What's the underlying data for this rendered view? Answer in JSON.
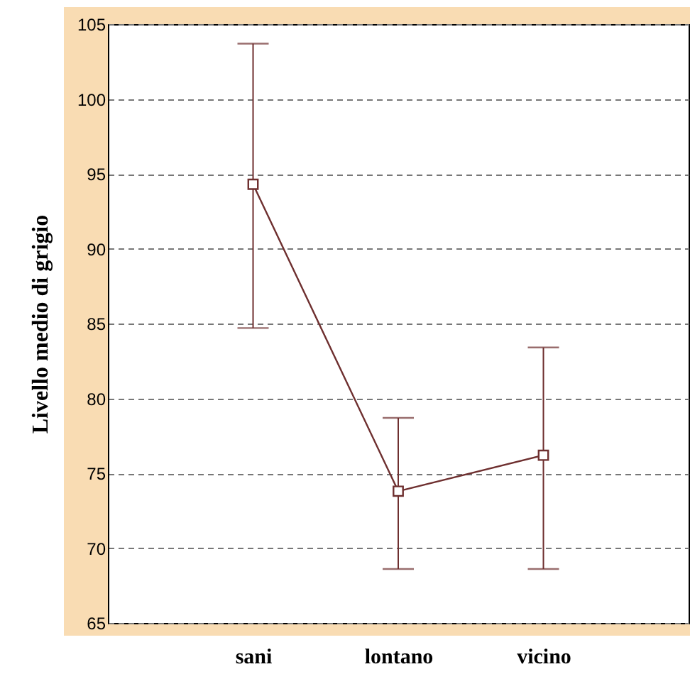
{
  "chart_data": {
    "type": "line",
    "ylabel": "Livello medio di grigio",
    "categories": [
      "sani",
      "lontano",
      "vicino"
    ],
    "series": [
      {
        "color": "#6e2f2f",
        "values": [
          94.3,
          73.8,
          76.2
        ],
        "errors": [
          [
            84.7,
            103.7
          ],
          [
            68.6,
            78.7
          ],
          [
            68.6,
            83.4
          ]
        ]
      }
    ],
    "ylim": [
      65,
      105
    ],
    "yticks": [
      65,
      70,
      75,
      80,
      85,
      90,
      95,
      100,
      105
    ],
    "grid": "y",
    "marker": "square",
    "line_style": "solid"
  }
}
